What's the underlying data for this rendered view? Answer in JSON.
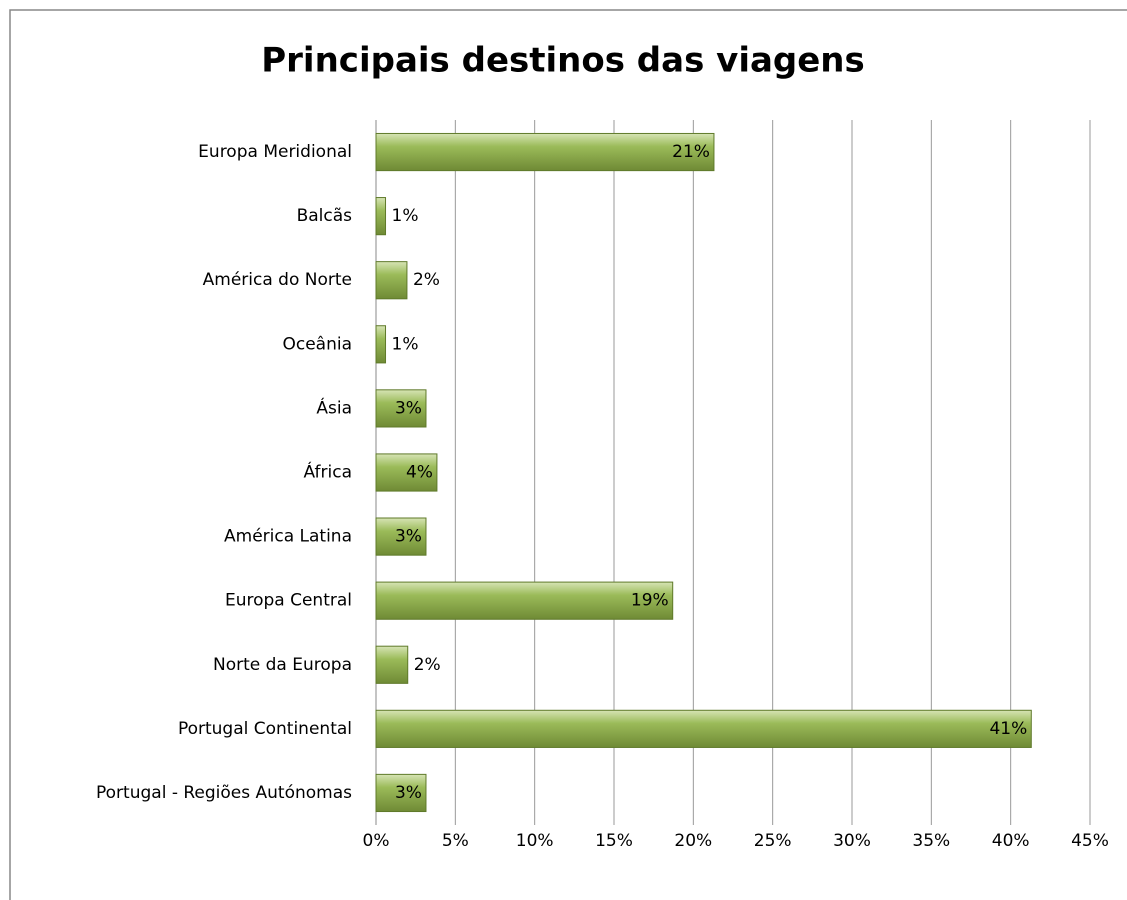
{
  "chart_data": {
    "type": "barh",
    "title": "Principais destinos das viagens",
    "categories": [
      "Europa Meridional",
      "Balcãs",
      "América do Norte",
      "Oceânia",
      "Ásia",
      "África",
      "América Latina",
      "Europa Central",
      "Norte da Europa",
      "Portugal Continental",
      "Portugal - Regiões Autónomas"
    ],
    "values": [
      21.3,
      0.6,
      1.95,
      0.6,
      3.15,
      3.84,
      3.15,
      18.7,
      2.0,
      41.3,
      3.15
    ],
    "value_labels": [
      "21%",
      "1%",
      "2%",
      "1%",
      "3%",
      "4%",
      "3%",
      "19%",
      "2%",
      "41%",
      "3%"
    ],
    "color": "#9bbb59",
    "xlim": [
      0,
      45
    ],
    "xticks": [
      {
        "value": 0,
        "label": "0%"
      },
      {
        "value": 5,
        "label": "5%"
      },
      {
        "value": 10,
        "label": "10%"
      },
      {
        "value": 15,
        "label": "15%"
      },
      {
        "value": 20,
        "label": "20%"
      },
      {
        "value": 25,
        "label": "25%"
      },
      {
        "value": 30,
        "label": "30%"
      },
      {
        "value": 35,
        "label": "35%"
      },
      {
        "value": 40,
        "label": "40%"
      },
      {
        "value": 45,
        "label": "45%"
      }
    ],
    "grid": true
  }
}
